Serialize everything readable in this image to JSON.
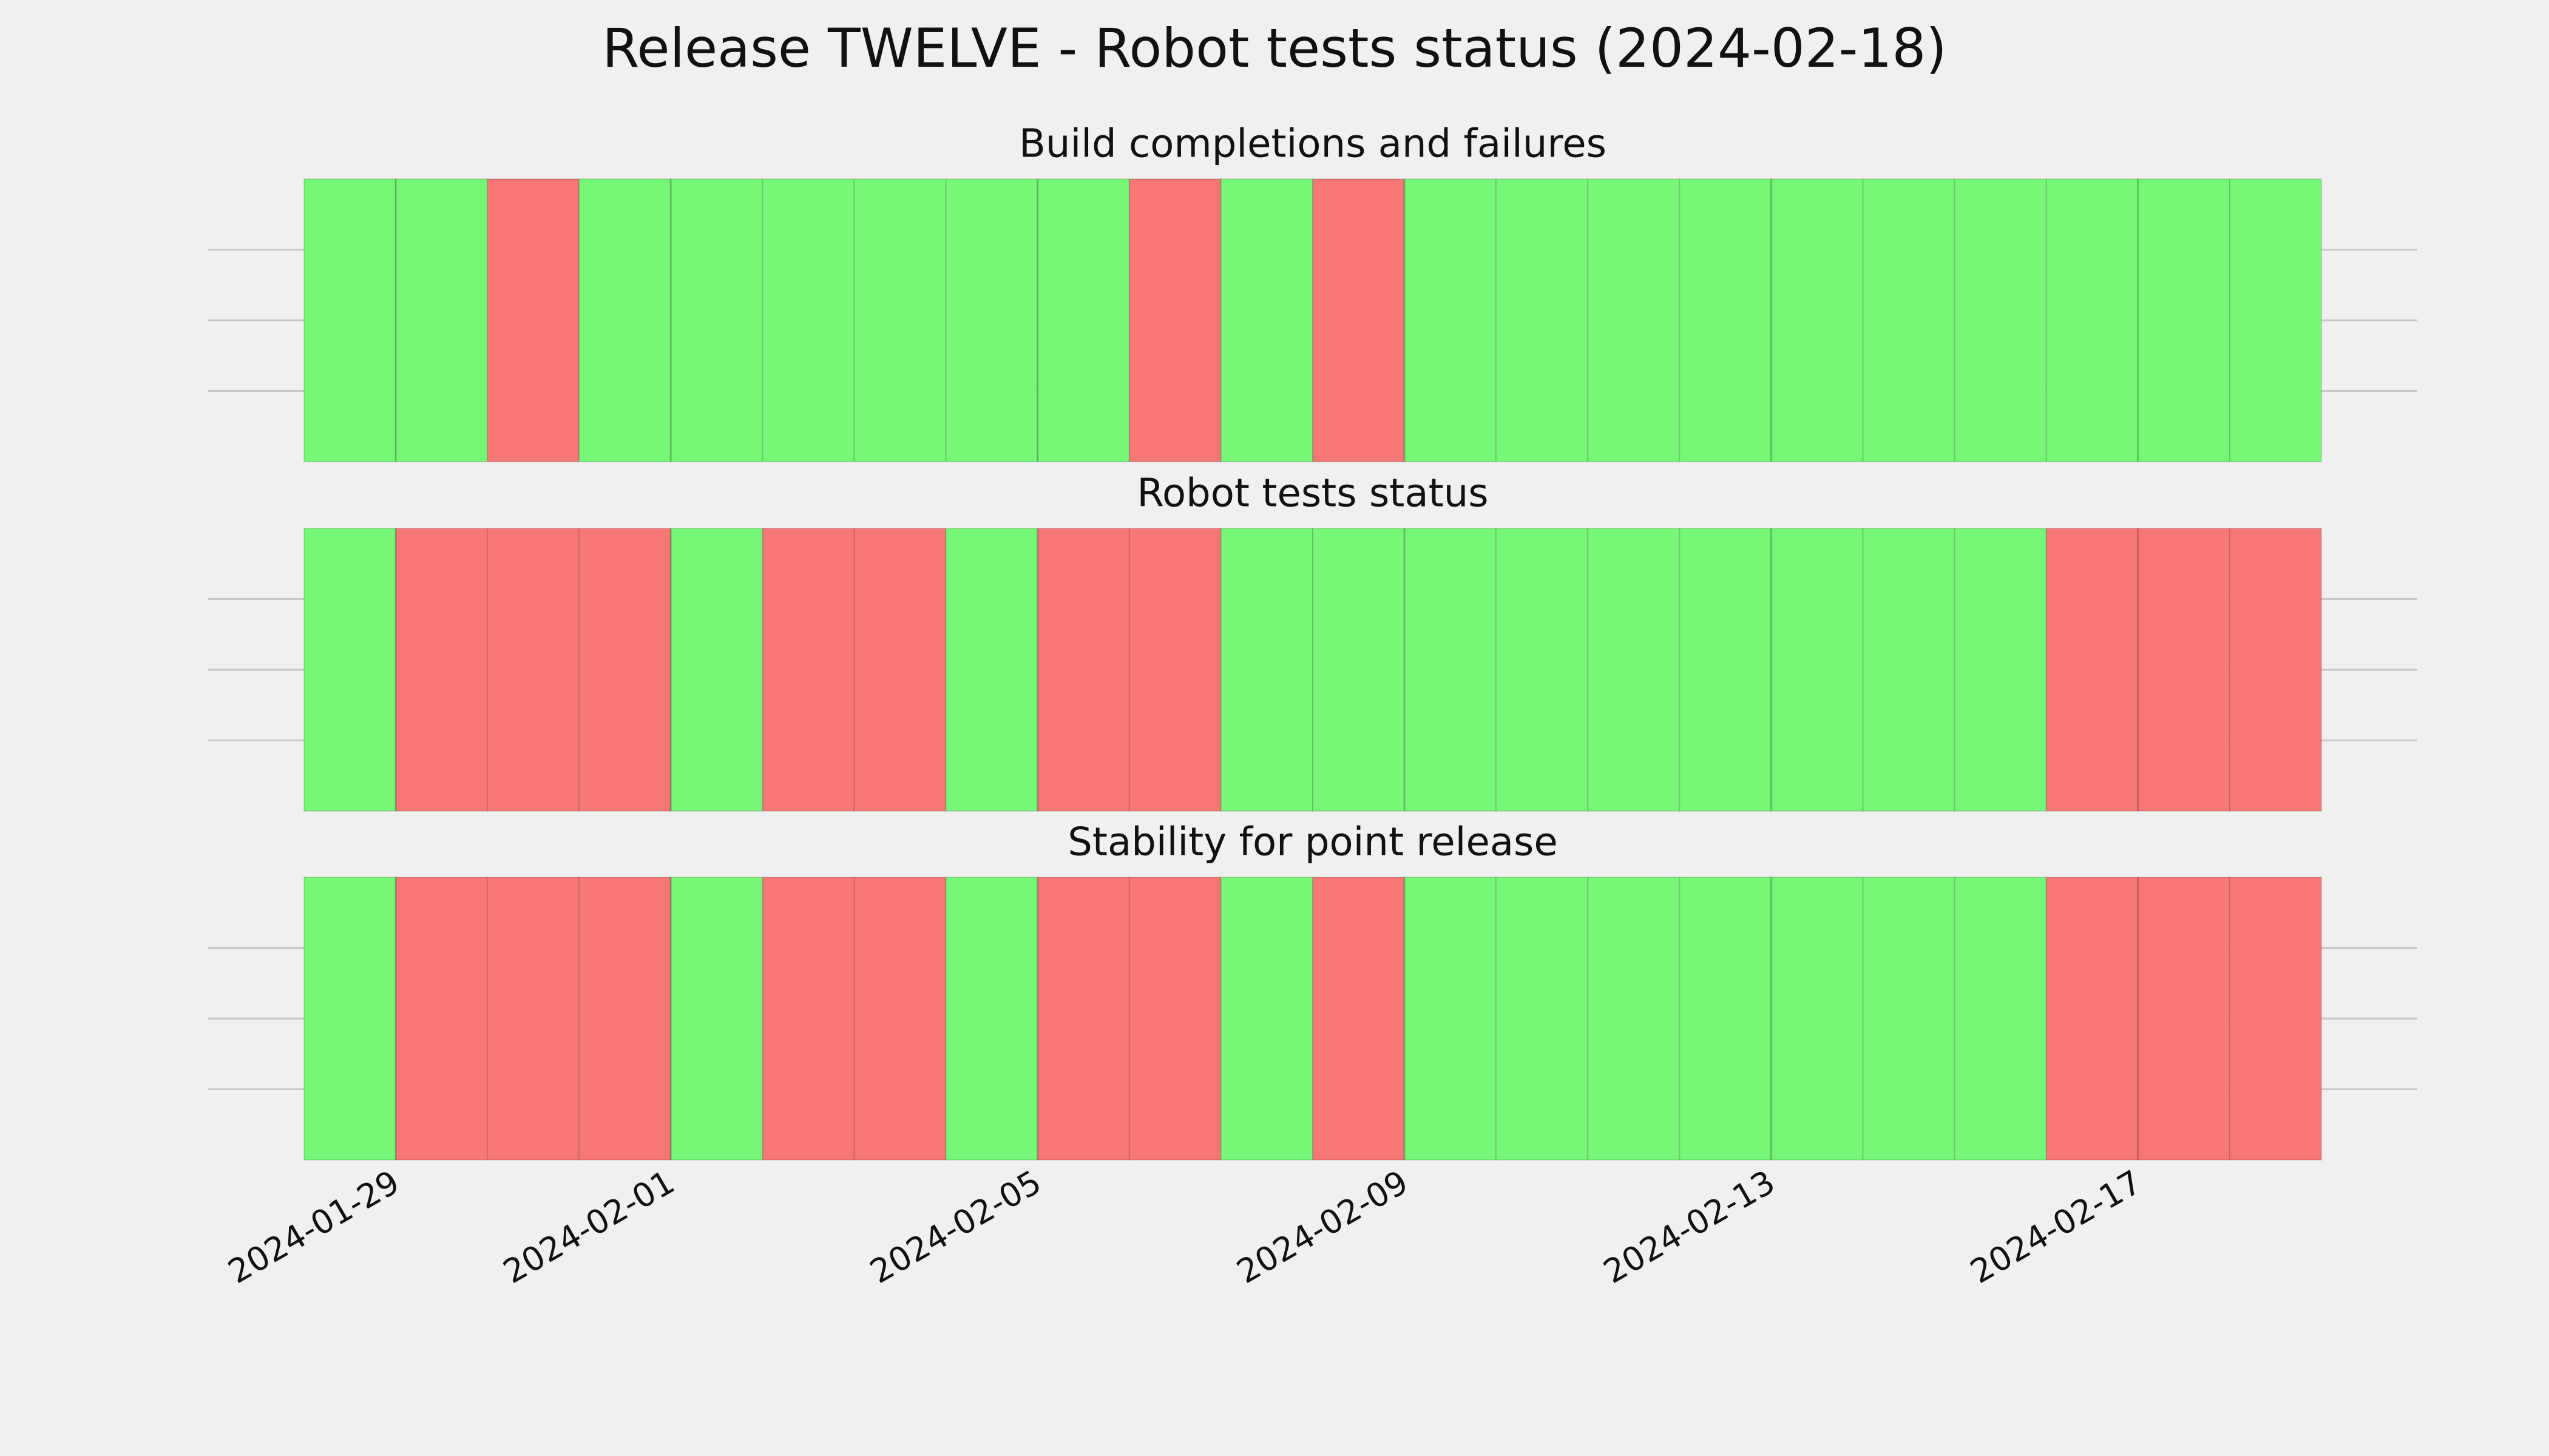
{
  "title": "Release TWELVE - Robot tests status (2024-02-18)",
  "chart_data": [
    {
      "type": "span",
      "title": "Build completions and failures",
      "x": [
        "2024-01-28",
        "2024-01-29",
        "2024-01-30",
        "2024-01-31",
        "2024-02-01",
        "2024-02-02",
        "2024-02-03",
        "2024-02-04",
        "2024-02-05",
        "2024-02-06",
        "2024-02-07",
        "2024-02-08",
        "2024-02-09",
        "2024-02-10",
        "2024-02-11",
        "2024-02-12",
        "2024-02-13",
        "2024-02-14",
        "2024-02-15",
        "2024-02-16",
        "2024-02-17",
        "2024-02-18"
      ],
      "colors": [
        "#77f777",
        "#77f777",
        "#f77777",
        "#77f777",
        "#77f777",
        "#77f777",
        "#77f777",
        "#77f777",
        "#77f777",
        "#f77777",
        "#77f777",
        "#f77777",
        "#77f777",
        "#77f777",
        "#77f777",
        "#77f777",
        "#77f777",
        "#77f777",
        "#77f777",
        "#77f777",
        "#77f777",
        "#77f777"
      ],
      "xlim": [
        "2024-01-28",
        "2024-02-19"
      ],
      "xticks": [
        "2024-01-29",
        "2024-02-01",
        "2024-02-05",
        "2024-02-09",
        "2024-02-13",
        "2024-02-17"
      ],
      "ylim": [
        0,
        1
      ],
      "yticks": [
        0.25,
        0.5,
        0.75
      ],
      "grid": true
    },
    {
      "type": "span",
      "title": "Robot tests status",
      "x": [
        "2024-01-28",
        "2024-01-29",
        "2024-01-30",
        "2024-01-31",
        "2024-02-01",
        "2024-02-02",
        "2024-02-03",
        "2024-02-04",
        "2024-02-05",
        "2024-02-06",
        "2024-02-07",
        "2024-02-08",
        "2024-02-09",
        "2024-02-10",
        "2024-02-11",
        "2024-02-12",
        "2024-02-13",
        "2024-02-14",
        "2024-02-15",
        "2024-02-16",
        "2024-02-17",
        "2024-02-18"
      ],
      "colors": [
        "#77f777",
        "#f77777",
        "#f77777",
        "#f77777",
        "#77f777",
        "#f77777",
        "#f77777",
        "#77f777",
        "#f77777",
        "#f77777",
        "#77f777",
        "#77f777",
        "#77f777",
        "#77f777",
        "#77f777",
        "#77f777",
        "#77f777",
        "#77f777",
        "#77f777",
        "#f77777",
        "#f77777",
        "#f77777"
      ],
      "xlim": [
        "2024-01-28",
        "2024-02-19"
      ],
      "xticks": [
        "2024-01-29",
        "2024-02-01",
        "2024-02-05",
        "2024-02-09",
        "2024-02-13",
        "2024-02-17"
      ],
      "ylim": [
        0,
        1
      ],
      "yticks": [
        0.25,
        0.5,
        0.75
      ],
      "grid": true
    },
    {
      "type": "span",
      "title": "Stability for point release",
      "x": [
        "2024-01-28",
        "2024-01-29",
        "2024-01-30",
        "2024-01-31",
        "2024-02-01",
        "2024-02-02",
        "2024-02-03",
        "2024-02-04",
        "2024-02-05",
        "2024-02-06",
        "2024-02-07",
        "2024-02-08",
        "2024-02-09",
        "2024-02-10",
        "2024-02-11",
        "2024-02-12",
        "2024-02-13",
        "2024-02-14",
        "2024-02-15",
        "2024-02-16",
        "2024-02-17",
        "2024-02-18"
      ],
      "colors": [
        "#77f777",
        "#f77777",
        "#f77777",
        "#f77777",
        "#77f777",
        "#f77777",
        "#f77777",
        "#77f777",
        "#f77777",
        "#f77777",
        "#77f777",
        "#f77777",
        "#77f777",
        "#77f777",
        "#77f777",
        "#77f777",
        "#77f777",
        "#77f777",
        "#77f777",
        "#f77777",
        "#f77777",
        "#f77777"
      ],
      "xlim": [
        "2024-01-28",
        "2024-02-19"
      ],
      "xticks": [
        "2024-01-29",
        "2024-02-01",
        "2024-02-05",
        "2024-02-09",
        "2024-02-13",
        "2024-02-17"
      ],
      "ylim": [
        0,
        1
      ],
      "yticks": [
        0.25,
        0.5,
        0.75
      ],
      "grid": true,
      "show_xtick_labels": true
    }
  ]
}
